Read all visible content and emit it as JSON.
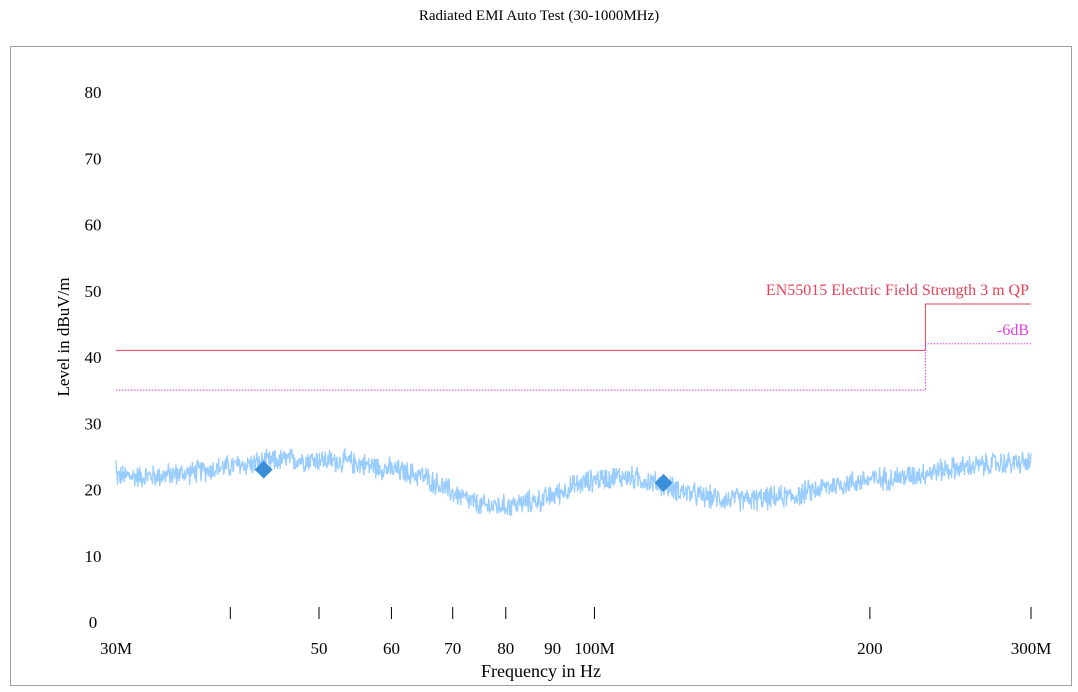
{
  "chart_data": {
    "type": "line",
    "title": "Radiated EMI Auto Test (30-1000MHz)",
    "xlabel": "Frequency in Hz",
    "ylabel": "Level in dBuV/m",
    "x_scale": "log",
    "xlim": [
      30,
      300
    ],
    "ylim": [
      0,
      80
    ],
    "y_ticks": [
      0,
      10,
      20,
      30,
      40,
      50,
      60,
      70,
      80
    ],
    "x_tick_labels": [
      {
        "value": 30,
        "label": "30M"
      },
      {
        "value": 50,
        "label": "50"
      },
      {
        "value": 60,
        "label": "60"
      },
      {
        "value": 70,
        "label": "70"
      },
      {
        "value": 80,
        "label": "80"
      },
      {
        "value": 90,
        "label": "90"
      },
      {
        "value": 100,
        "label": "100M"
      },
      {
        "value": 200,
        "label": "200"
      },
      {
        "value": 300,
        "label": "300M"
      }
    ],
    "x_minor_ticks": [
      40,
      50,
      60,
      70,
      80,
      100,
      200,
      300
    ],
    "grid": false,
    "series": [
      {
        "name": "",
        "color": "#99ccff",
        "x": [
          30,
          33,
          36,
          40,
          43,
          46,
          50,
          55,
          60,
          65,
          70,
          75,
          80,
          88,
          95,
          100,
          107,
          113,
          120,
          130,
          140,
          150,
          165,
          180,
          200,
          220,
          240,
          260,
          280,
          300
        ],
        "y": [
          22,
          22,
          22.5,
          23.5,
          24,
          24.5,
          24.5,
          24,
          23,
          22,
          19.5,
          17.5,
          17.5,
          18.5,
          20.5,
          21.5,
          22,
          21.5,
          20.5,
          19,
          18.5,
          18.5,
          19,
          20.5,
          21.5,
          22,
          23,
          23.5,
          24,
          24
        ],
        "noise_amplitude_dB": 3
      }
    ],
    "limit_lines": [
      {
        "name": "EN55015 Electric Field Strength 3 m QP",
        "color": "#e8425a",
        "style": "solid",
        "steps": [
          {
            "x_start": 30,
            "x_end": 230,
            "y": 41
          },
          {
            "x_start": 230,
            "x_end": 300,
            "y": 48
          }
        ]
      },
      {
        "name": "-6dB",
        "color": "#e040e0",
        "style": "dotted",
        "steps": [
          {
            "x_start": 30,
            "x_end": 230,
            "y": 35
          },
          {
            "x_start": 230,
            "x_end": 300,
            "y": 42
          }
        ]
      }
    ],
    "markers": [
      {
        "x": 43.5,
        "y": 23,
        "color": "#3a8ed8"
      },
      {
        "x": 119,
        "y": 21,
        "color": "#3a8ed8"
      }
    ]
  }
}
